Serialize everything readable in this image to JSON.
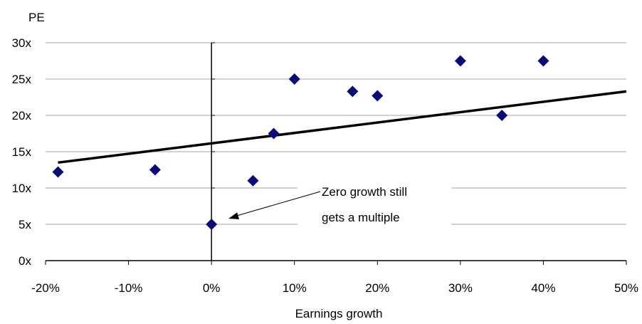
{
  "chart_data": {
    "type": "scatter",
    "xlabel": "Earnings growth",
    "ylabel": "PE",
    "xlim": [
      -20,
      50
    ],
    "ylim": [
      0,
      30
    ],
    "x_ticks": [
      -20,
      -10,
      0,
      10,
      20,
      30,
      40,
      50
    ],
    "x_tick_labels": [
      "-20%",
      "-10%",
      "0%",
      "10%",
      "20%",
      "30%",
      "40%",
      "50%"
    ],
    "y_ticks": [
      0,
      5,
      10,
      15,
      20,
      25,
      30
    ],
    "y_tick_labels": [
      "0x",
      "5x",
      "10x",
      "15x",
      "20x",
      "25x",
      "30x"
    ],
    "grid": "horizontal",
    "marker_color": "#0a0a7a",
    "trendline_color": "#000000",
    "points": [
      {
        "x": -18.5,
        "y": 12.2
      },
      {
        "x": -6.8,
        "y": 12.5
      },
      {
        "x": 0,
        "y": 5.0
      },
      {
        "x": 5,
        "y": 11.0
      },
      {
        "x": 7.5,
        "y": 17.5
      },
      {
        "x": 10,
        "y": 25.0
      },
      {
        "x": 17,
        "y": 23.3
      },
      {
        "x": 20,
        "y": 22.7
      },
      {
        "x": 30,
        "y": 27.5
      },
      {
        "x": 35,
        "y": 20.0
      },
      {
        "x": 40,
        "y": 27.5
      }
    ],
    "trendline": {
      "x": [
        -18.5,
        50
      ],
      "y": [
        13.5,
        23.3
      ]
    },
    "annotation": {
      "lines": [
        "Zero growth still",
        "gets a multiple"
      ],
      "points_to": {
        "x": 0,
        "y": 5.0
      }
    }
  }
}
